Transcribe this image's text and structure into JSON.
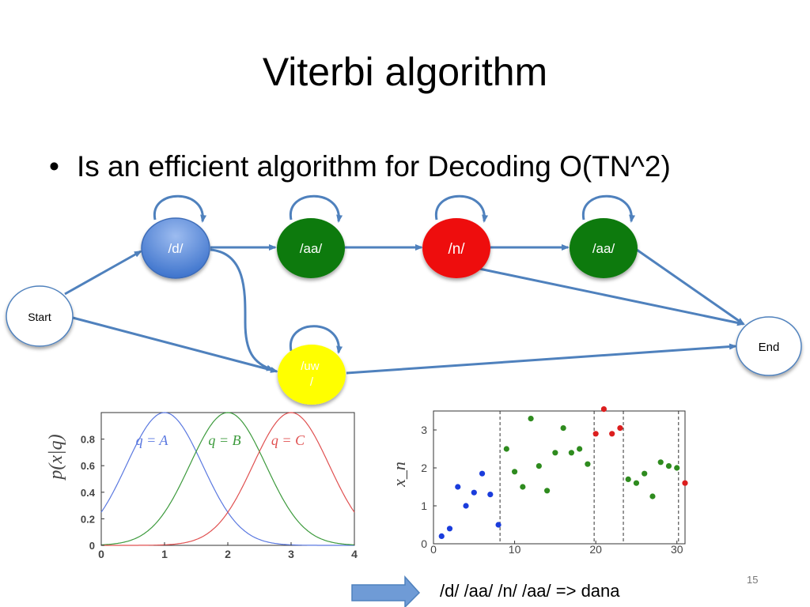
{
  "slide": {
    "title": "Viterbi algorithm",
    "bullet": "Is an efficient algorithm for Decoding O(TN^2)",
    "bullet_marker": "•",
    "caption": "/d/ /aa/ /n/ /aa/ => dana",
    "slide_number": "15"
  },
  "diagram": {
    "nodes": [
      {
        "id": "start",
        "label": "Start",
        "fill": "#ffffff"
      },
      {
        "id": "d",
        "label": "/d/",
        "fill": "#5b8fd9",
        "self_loop": true
      },
      {
        "id": "aa1",
        "label": "/aa/",
        "fill": "#0a7a0a",
        "self_loop": true
      },
      {
        "id": "n",
        "label": "/n/",
        "fill": "#ee1111",
        "self_loop": true
      },
      {
        "id": "aa2",
        "label": "/aa/",
        "fill": "#0a7a0a",
        "self_loop": true
      },
      {
        "id": "uw",
        "label": "/uw /",
        "fill": "#ffff00",
        "self_loop": true
      },
      {
        "id": "end",
        "label": "End",
        "fill": "#ffffff"
      }
    ],
    "edges": [
      {
        "from": "start",
        "to": "d"
      },
      {
        "from": "start",
        "to": "uw"
      },
      {
        "from": "d",
        "to": "aa1"
      },
      {
        "from": "d",
        "to": "uw"
      },
      {
        "from": "aa1",
        "to": "n"
      },
      {
        "from": "n",
        "to": "aa2"
      },
      {
        "from": "n",
        "to": "end"
      },
      {
        "from": "aa2",
        "to": "end"
      },
      {
        "from": "uw",
        "to": "end"
      }
    ],
    "edge_color": "#4f81bd"
  },
  "chart_data": [
    {
      "type": "line",
      "ylabel": "p(x|q)",
      "xlim": [
        0,
        4
      ],
      "ylim": [
        0,
        1
      ],
      "x_ticks": [
        "0",
        "1",
        "2",
        "3",
        "4"
      ],
      "y_ticks": [
        "0",
        "0.2",
        "0.4",
        "0.6",
        "0.8"
      ],
      "series": [
        {
          "name": "q = A",
          "mean": 1,
          "std": 0.6,
          "color": "#5a78e0"
        },
        {
          "name": "q = B",
          "mean": 2,
          "std": 0.6,
          "color": "#3c9a3c"
        },
        {
          "name": "q = C",
          "mean": 3,
          "std": 0.6,
          "color": "#e05050"
        }
      ]
    },
    {
      "type": "scatter",
      "ylabel": "x_n",
      "xlim": [
        0,
        31
      ],
      "ylim": [
        0,
        3.5
      ],
      "x_ticks": [
        "0",
        "10",
        "20",
        "30"
      ],
      "y_ticks": [
        "0",
        "1",
        "2",
        "3"
      ],
      "dividers": [
        8.2,
        19.8,
        23.4,
        30.2
      ],
      "series": [
        {
          "name": "A",
          "color": "#1a3cdc",
          "points": [
            [
              1,
              0.2
            ],
            [
              2,
              0.4
            ],
            [
              3,
              1.5
            ],
            [
              4,
              1.0
            ],
            [
              5,
              1.35
            ],
            [
              6,
              1.85
            ],
            [
              7,
              1.3
            ],
            [
              8,
              0.5
            ]
          ]
        },
        {
          "name": "B",
          "color": "#2e8b1e",
          "points": [
            [
              9,
              2.5
            ],
            [
              10,
              1.9
            ],
            [
              11,
              1.5
            ],
            [
              12,
              3.3
            ],
            [
              13,
              2.05
            ],
            [
              14,
              1.4
            ],
            [
              15,
              2.4
            ],
            [
              16,
              3.05
            ],
            [
              17,
              2.4
            ],
            [
              18,
              2.5
            ],
            [
              19,
              2.1
            ],
            [
              24,
              1.7
            ],
            [
              25,
              1.6
            ],
            [
              26,
              1.85
            ],
            [
              27,
              1.25
            ],
            [
              28,
              2.15
            ],
            [
              29,
              2.05
            ],
            [
              30,
              2.0
            ]
          ]
        },
        {
          "name": "C",
          "color": "#dc1e1e",
          "points": [
            [
              20,
              2.9
            ],
            [
              21,
              3.55
            ],
            [
              22,
              2.9
            ],
            [
              23,
              3.05
            ],
            [
              31,
              1.6
            ]
          ]
        }
      ]
    }
  ]
}
